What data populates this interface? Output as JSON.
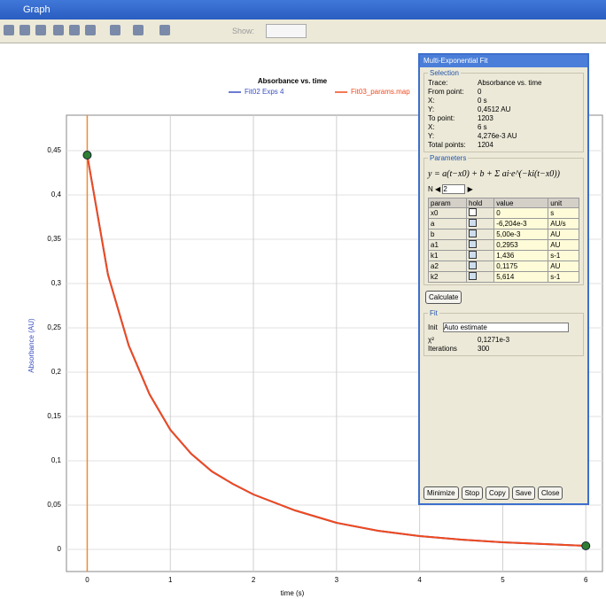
{
  "window": {
    "title": "Graph"
  },
  "toolbar": {
    "show_label": "Show:"
  },
  "chart_data": {
    "type": "line",
    "title": "Absorbance vs. time",
    "x_label": "time (s)",
    "y_label": "Absorbance (AU)",
    "x": [
      0,
      0.25,
      0.5,
      0.75,
      1,
      1.25,
      1.5,
      1.75,
      2,
      2.5,
      3,
      3.5,
      4,
      4.5,
      5,
      5.5,
      6
    ],
    "series": [
      {
        "name": "Fit02 Exps 4",
        "color": "#3a4fc0",
        "values": [
          0.445,
          0.31,
          0.23,
          0.175,
          0.135,
          0.108,
          0.088,
          0.074,
          0.062,
          0.044,
          0.03,
          0.021,
          0.015,
          0.011,
          0.008,
          0.006,
          0.004
        ]
      },
      {
        "name": "Fit03_params.map",
        "color": "#f04a1e",
        "values": [
          0.445,
          0.31,
          0.23,
          0.175,
          0.135,
          0.108,
          0.088,
          0.074,
          0.062,
          0.044,
          0.03,
          0.021,
          0.015,
          0.011,
          0.008,
          0.006,
          0.004
        ]
      }
    ],
    "xlim": [
      -0.25,
      6.2
    ],
    "ylim": [
      -0.025,
      0.49
    ],
    "xticks": [
      0,
      1,
      2,
      3,
      4,
      5,
      6
    ],
    "yticks": [
      0,
      {
        "value": 0.05,
        "label": "0,05"
      },
      {
        "value": 0.1,
        "label": "0,1"
      },
      {
        "value": 0.15,
        "label": "0,15"
      },
      {
        "value": 0.2,
        "label": "0,2"
      },
      {
        "value": 0.25,
        "label": "0,25"
      },
      {
        "value": 0.3,
        "label": "0,3"
      },
      {
        "value": 0.35,
        "label": "0,35"
      },
      {
        "value": 0.4,
        "label": "0,4"
      },
      {
        "value": 0.45,
        "label": "0,45"
      }
    ],
    "grid": true
  },
  "dialog": {
    "title": "Multi-Exponential Fit",
    "selection": {
      "heading": "Selection",
      "rows": [
        [
          "Trace:",
          "Absorbance vs. time"
        ],
        [
          "From point:",
          "0"
        ],
        [
          "X:",
          "0 s"
        ],
        [
          "Y:",
          "0,4512 AU"
        ],
        [
          "To point:",
          "1203"
        ],
        [
          "X:",
          "6 s"
        ],
        [
          "Y:",
          "4,276e-3 AU"
        ],
        [
          "Total points:",
          "1204"
        ]
      ]
    },
    "parameters": {
      "heading": "Parameters",
      "formula": "y = a(t−x0) + b + Σ ai·e^(−ki(t−x0))",
      "n_label": "N",
      "n_value": "2",
      "header": [
        "param",
        "hold",
        "value",
        "unit"
      ],
      "rows": [
        [
          "x0",
          "0",
          "s"
        ],
        [
          "a",
          "-6,204e-3",
          "AU/s"
        ],
        [
          "b",
          "5,00e-3",
          "AU"
        ],
        [
          "a1",
          "0,2953",
          "AU"
        ],
        [
          "k1",
          "1,436",
          "s-1"
        ],
        [
          "a2",
          "0,1175",
          "AU"
        ],
        [
          "k2",
          "5,614",
          "s-1"
        ]
      ]
    },
    "calculate": "Calculate",
    "fit": {
      "heading": "Fit",
      "init_label": "Init",
      "init_value": "Auto estimate",
      "chi_label": "χ²",
      "chi_value": "0,1271e-3",
      "iter_label": "Iterations",
      "iter_value": "300"
    },
    "buttons": [
      "Minimize",
      "Stop",
      "Copy",
      "Save",
      "Close"
    ]
  }
}
